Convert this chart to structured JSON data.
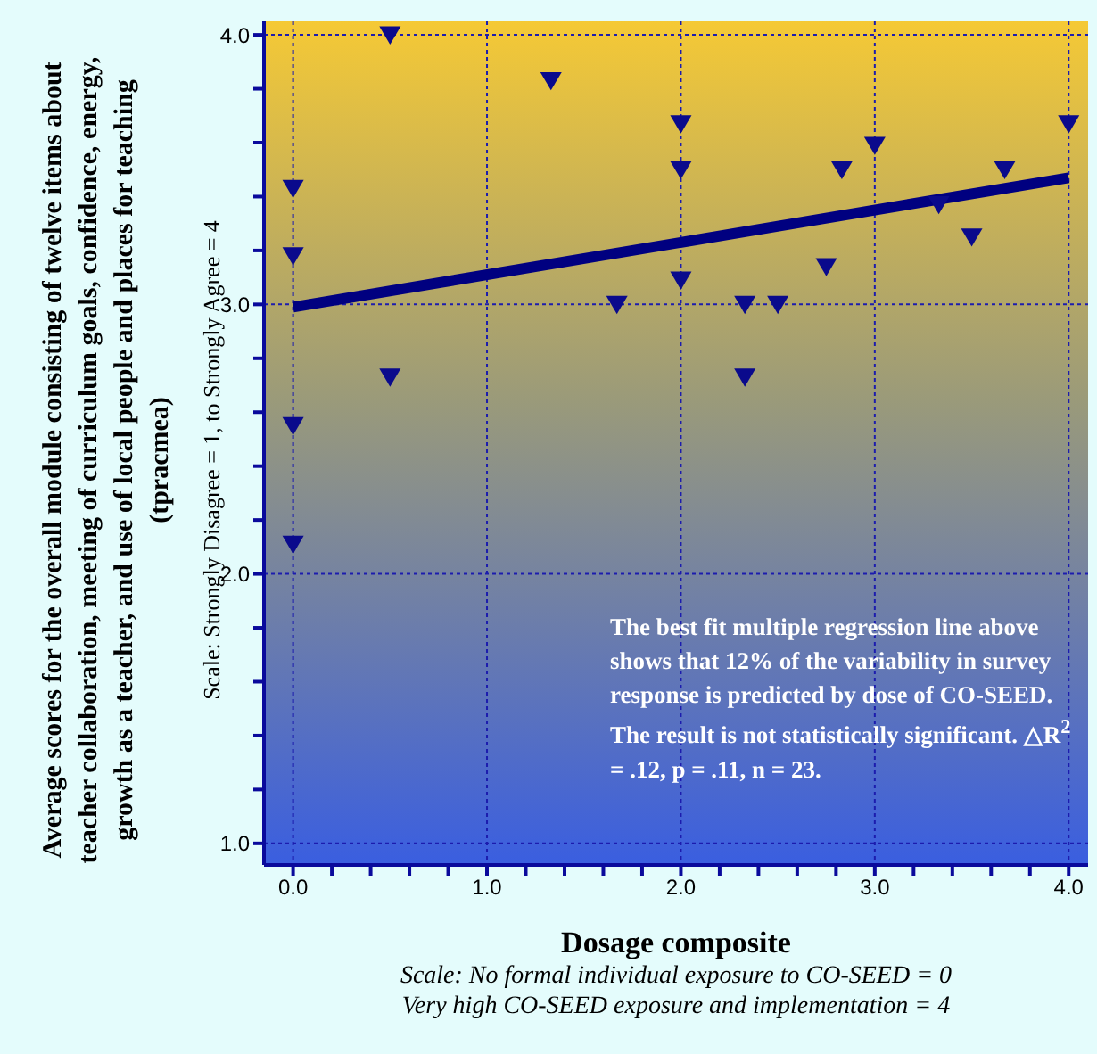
{
  "chart_data": {
    "type": "scatter",
    "ylabel": "Average scores for the overall module consisting of twelve items about teacher collaboration, meeting of curriculum goals, confidence, energy, growth as a teacher, and use of local people and places for teaching (tpracmea)",
    "xlabel": "Dosage composite",
    "annotations": [
      "Scale: Strongly Disagree = 1, to Strongly Agree = 4",
      "The best fit multiple regression line above shows that 12% of the variability in survey response is predicted by dose of CO-SEED. The result is not statistically significant. △R$^{2}$ = .12, p = .11, n = 23.",
      "Scale: No formal individual exposure to CO-SEED = 0",
      "Very high CO-SEED exposure and implementation = 4"
    ],
    "series": [
      {
        "color": "#0a0a8c",
        "marker": "triangle",
        "x": [
          0,
          0,
          0,
          0,
          0.5,
          0.5,
          1.33,
          1.67,
          2,
          2,
          2,
          2.33,
          2.5,
          2.33,
          2.75,
          2.83,
          3,
          3.33,
          3.5,
          3.67,
          4
        ],
        "values": [
          3.43,
          3.18,
          2.55,
          2.11,
          4.0,
          2.73,
          3.83,
          3.0,
          3.67,
          3.5,
          3.09,
          3.0,
          3.0,
          2.73,
          3.14,
          3.5,
          3.59,
          3.37,
          3.25,
          3.5,
          3.67
        ]
      },
      {
        "type": "line",
        "color": "#000080",
        "marker": "none",
        "x": [
          0,
          4
        ],
        "values": [
          2.99,
          3.47
        ]
      }
    ],
    "xlim": [
      -0.15,
      4.1
    ],
    "ylim": [
      0.92,
      4.05
    ],
    "xticks": [
      {
        "value": 0,
        "label": "0.0"
      },
      {
        "value": 0.2,
        "label": null
      },
      {
        "value": 0.4,
        "label": null
      },
      {
        "value": 0.6,
        "label": null
      },
      {
        "value": 0.8,
        "label": null
      },
      {
        "value": 1,
        "label": "1.0"
      },
      {
        "value": 1.2,
        "label": null
      },
      {
        "value": 1.4,
        "label": null
      },
      {
        "value": 1.6,
        "label": null
      },
      {
        "value": 1.8,
        "label": null
      },
      {
        "value": 2,
        "label": "2.0"
      },
      {
        "value": 2.2,
        "label": null
      },
      {
        "value": 2.4,
        "label": null
      },
      {
        "value": 2.6,
        "label": null
      },
      {
        "value": 2.8,
        "label": null
      },
      {
        "value": 3,
        "label": "3.0"
      },
      {
        "value": 3.2,
        "label": null
      },
      {
        "value": 3.4,
        "label": null
      },
      {
        "value": 3.6,
        "label": null
      },
      {
        "value": 3.8,
        "label": null
      },
      {
        "value": 4,
        "label": "4.0"
      }
    ],
    "yticks": [
      {
        "value": 1,
        "label": "1.0"
      },
      {
        "value": 1.2,
        "label": null
      },
      {
        "value": 1.4,
        "label": null
      },
      {
        "value": 1.6,
        "label": null
      },
      {
        "value": 1.8,
        "label": null
      },
      {
        "value": 2,
        "label": "2.0"
      },
      {
        "value": 2.2,
        "label": null
      },
      {
        "value": 2.4,
        "label": null
      },
      {
        "value": 2.6,
        "label": null
      },
      {
        "value": 2.8,
        "label": null
      },
      {
        "value": 3,
        "label": "3.0"
      },
      {
        "value": 3.2,
        "label": null
      },
      {
        "value": 3.4,
        "label": null
      },
      {
        "value": 3.6,
        "label": null
      },
      {
        "value": 3.8,
        "label": null
      },
      {
        "value": 4,
        "label": "4.0"
      }
    ],
    "grid": true,
    "legend": false
  }
}
